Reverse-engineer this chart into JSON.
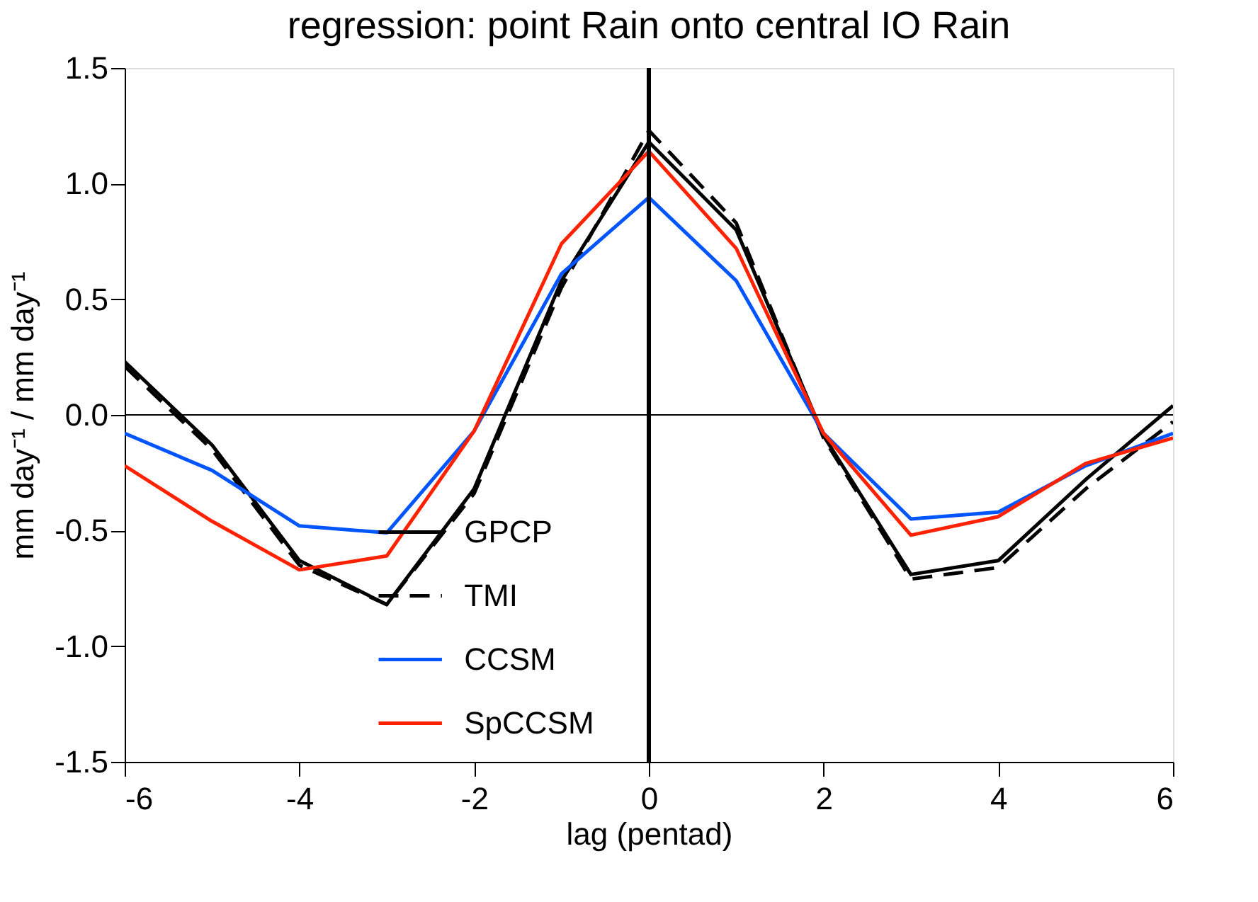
{
  "chart_data": {
    "type": "line",
    "title": "regression:  point Rain onto central IO Rain",
    "xlabel": "lag (pentad)",
    "ylabel": "mm day⁻¹ / mm day⁻¹",
    "x": [
      -6,
      -5,
      -4,
      -3,
      -2,
      -1,
      0,
      1,
      2,
      3,
      4,
      5,
      6
    ],
    "series": [
      {
        "name": "GPCP",
        "color": "#000000",
        "line_style": "solid",
        "values": [
          0.23,
          -0.13,
          -0.63,
          -0.82,
          -0.32,
          0.58,
          1.18,
          0.8,
          -0.09,
          -0.69,
          -0.63,
          -0.28,
          0.04
        ]
      },
      {
        "name": "TMI",
        "color": "#000000",
        "line_style": "dashed",
        "values": [
          0.21,
          -0.15,
          -0.65,
          -0.82,
          -0.34,
          0.55,
          1.23,
          0.83,
          -0.1,
          -0.71,
          -0.66,
          -0.32,
          -0.03
        ]
      },
      {
        "name": "CCSM",
        "color": "#0055ff",
        "line_style": "solid",
        "values": [
          -0.08,
          -0.24,
          -0.48,
          -0.51,
          -0.07,
          0.61,
          0.94,
          0.58,
          -0.08,
          -0.45,
          -0.42,
          -0.22,
          -0.08
        ]
      },
      {
        "name": "SpCCSM",
        "color": "#ff2200",
        "line_style": "solid",
        "values": [
          -0.22,
          -0.46,
          -0.67,
          -0.61,
          -0.07,
          0.74,
          1.14,
          0.72,
          -0.08,
          -0.52,
          -0.44,
          -0.21,
          -0.1
        ]
      }
    ],
    "xlim": [
      -6,
      6
    ],
    "xticks": [
      -6,
      -4,
      -2,
      0,
      2,
      4,
      6
    ],
    "ylim": [
      -1.5,
      1.5
    ],
    "yticks": [
      {
        "value": -1.5,
        "label": "-1.5"
      },
      {
        "value": -1,
        "label": "-1.0"
      },
      {
        "value": -0.5,
        "label": "-0.5"
      },
      {
        "value": 0,
        "label": "0.0"
      },
      {
        "value": 0.5,
        "label": "0.5"
      },
      {
        "value": 1,
        "label": "1.0"
      },
      {
        "value": 1.5,
        "label": "1.5"
      }
    ],
    "ref_lines": [
      {
        "axis": "y",
        "value": 0,
        "color": "#000000"
      },
      {
        "axis": "x",
        "value": 0,
        "color": "#000000"
      }
    ],
    "legend": "bottom",
    "grid": false,
    "marker": "none"
  }
}
